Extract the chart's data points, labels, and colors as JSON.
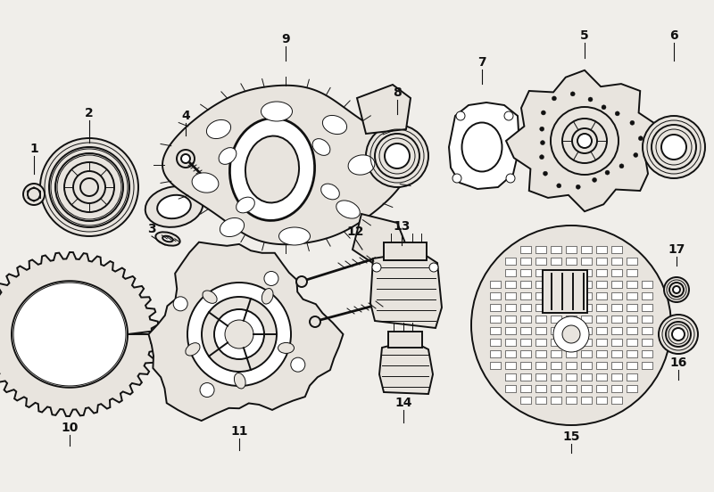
{
  "bg": "#f0eeea",
  "lc": "#111111",
  "fc_light": "#ffffff",
  "fc_part": "#e8e4de",
  "fc_dark": "#555555",
  "fig_w": 8.0,
  "fig_h": 5.52,
  "dpi": 100,
  "lw": 1.4,
  "lw_thin": 0.7,
  "lw_thick": 2.0
}
